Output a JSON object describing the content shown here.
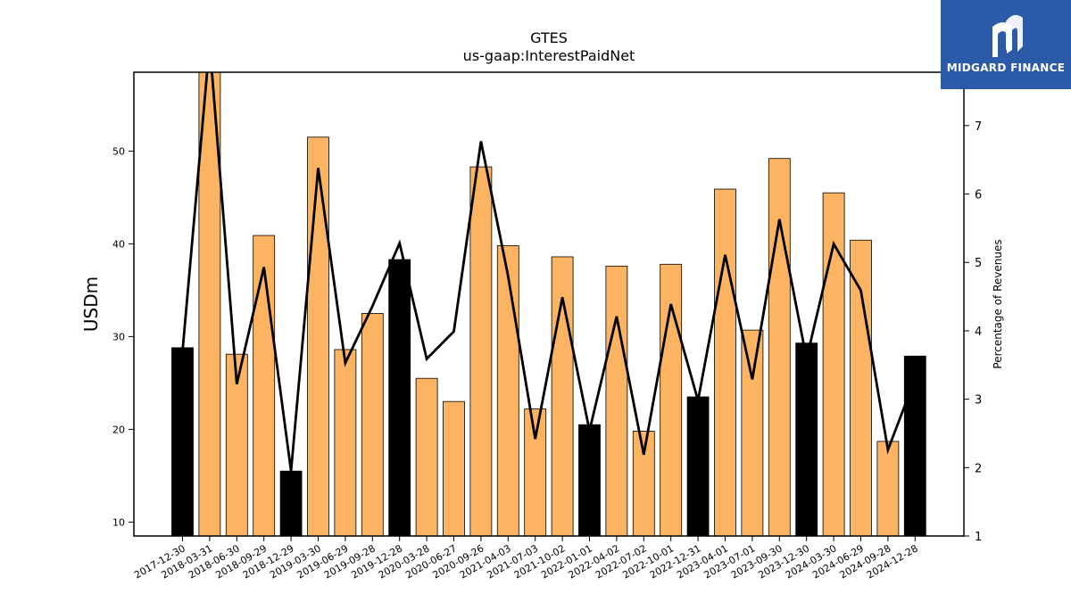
{
  "chart_data": {
    "type": "bar",
    "title": "GTES",
    "subtitle": "us-gaap:InterestPaidNet",
    "ylabel": "USDm",
    "y2label": "Percentage of Revenues",
    "ylim": [
      8.5,
      58.5
    ],
    "y2lim": [
      1,
      7.78
    ],
    "yticks": [
      10,
      20,
      30,
      40,
      50
    ],
    "y2ticks": [
      1,
      2,
      3,
      4,
      5,
      6,
      7
    ],
    "grid": false,
    "categories": [
      "2017-12-30",
      "2018-03-31",
      "2018-06-30",
      "2018-09-29",
      "2018-12-29",
      "2019-03-30",
      "2019-06-29",
      "2019-09-28",
      "2019-12-28",
      "2020-03-28",
      "2020-06-27",
      "2020-09-26",
      "2021-04-03",
      "2021-07-03",
      "2021-10-02",
      "2022-01-01",
      "2022-04-02",
      "2022-07-02",
      "2022-10-01",
      "2022-12-31",
      "2023-04-01",
      "2023-07-01",
      "2023-09-30",
      "2023-12-30",
      "2024-03-30",
      "2024-06-29",
      "2024-09-28",
      "2024-12-28"
    ],
    "series": [
      {
        "type": "bar",
        "values": [
          28.8,
          58.5,
          28.1,
          40.9,
          15.5,
          51.5,
          28.6,
          32.5,
          38.3,
          25.5,
          23.0,
          48.3,
          39.8,
          22.2,
          38.6,
          20.5,
          37.6,
          19.8,
          37.8,
          23.5,
          45.9,
          30.7,
          49.2,
          29.3,
          45.5,
          40.4,
          18.7,
          27.9
        ],
        "bar_colors": [
          "#000000",
          "#fdb462",
          "#fdb462",
          "#fdb462",
          "#000000",
          "#fdb462",
          "#fdb462",
          "#fdb462",
          "#000000",
          "#fdb462",
          "#fdb462",
          "#fdb462",
          "#fdb462",
          "#fdb462",
          "#fdb462",
          "#000000",
          "#fdb462",
          "#fdb462",
          "#fdb462",
          "#000000",
          "#fdb462",
          "#fdb462",
          "#fdb462",
          "#000000",
          "#fdb462",
          "#fdb462",
          "#fdb462",
          "#000000"
        ]
      },
      {
        "type": "line",
        "axis": "right",
        "color": "#000000",
        "values": [
          3.7,
          8.2,
          3.22,
          4.93,
          1.95,
          6.38,
          3.53,
          4.36,
          5.28,
          3.59,
          3.99,
          6.77,
          4.8,
          2.42,
          4.49,
          2.54,
          4.21,
          2.19,
          4.39,
          2.98,
          5.11,
          3.29,
          5.63,
          3.59,
          5.27,
          4.59,
          2.26,
          3.3
        ]
      }
    ]
  },
  "logo": {
    "text": "MIDGARD FINANCE",
    "bg_color": "#2b5aa8"
  }
}
